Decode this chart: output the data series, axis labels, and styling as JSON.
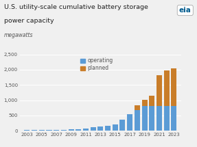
{
  "title_line1": "U.S. utility-scale cumulative battery storage",
  "title_line2": "power capacity",
  "unit_label": "megawatts",
  "bar_years": [
    2003,
    2004,
    2005,
    2006,
    2007,
    2008,
    2009,
    2010,
    2011,
    2012,
    2013,
    2014,
    2015,
    2016,
    2017,
    2018,
    2019,
    2020,
    2021,
    2022,
    2023
  ],
  "op_vals": [
    20,
    25,
    30,
    32,
    35,
    38,
    42,
    55,
    70,
    110,
    140,
    175,
    210,
    370,
    550,
    680,
    820,
    820,
    820,
    820,
    820
  ],
  "pl_vals": [
    0,
    0,
    0,
    0,
    0,
    0,
    0,
    0,
    0,
    0,
    0,
    0,
    0,
    0,
    0,
    160,
    200,
    330,
    1000,
    1150,
    1230
  ],
  "operating_color": "#5B9BD5",
  "planned_color": "#C97D29",
  "bg_color": "#F0F0F0",
  "ylim": [
    0,
    2500
  ],
  "yticks": [
    0,
    500,
    1000,
    1500,
    2000,
    2500
  ],
  "ytick_labels": [
    "0",
    "500",
    "1,000",
    "1,500",
    "2,000",
    "2,500"
  ],
  "shown_xticks": [
    2003,
    2005,
    2007,
    2009,
    2011,
    2013,
    2015,
    2017,
    2019,
    2021,
    2023
  ],
  "grid_color": "#FFFFFF",
  "title_fontsize": 6.8,
  "unit_fontsize": 5.5,
  "tick_fontsize": 5.0,
  "legend_fontsize": 5.5,
  "text_color": "#555555",
  "title_color": "#222222"
}
